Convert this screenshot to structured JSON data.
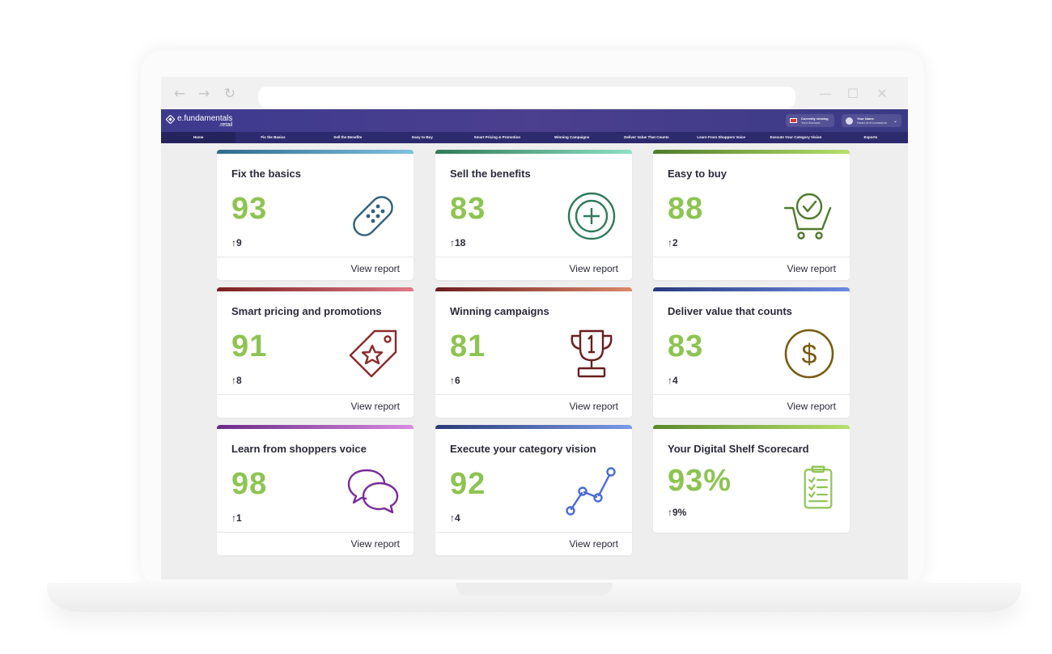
{
  "browser": {
    "icons": {
      "back": "←",
      "forward": "→",
      "reload": "↻",
      "minimize": "—",
      "maximize": "☐",
      "close": "✕"
    }
  },
  "header": {
    "logo_main": "e.fundamentals",
    "logo_sub": ".retail",
    "viewing_title": "Currently viewing",
    "viewing_sub": "Your Account",
    "user_name": "Your Name",
    "user_role": "Head of eCommerce"
  },
  "nav": {
    "items": [
      {
        "label": "Home"
      },
      {
        "label": "Fix the Basics"
      },
      {
        "label": "Sell the Benefits"
      },
      {
        "label": "Easy to Buy"
      },
      {
        "label": "Smart Pricing & Promotion"
      },
      {
        "label": "Winning Campaigns"
      },
      {
        "label": "Deliver Value That Counts"
      },
      {
        "label": "Learn From Shoppers Voice"
      },
      {
        "label": "Execute Your Category Vision"
      },
      {
        "label": "Exports"
      }
    ]
  },
  "cards": [
    {
      "title": "Fix the basics",
      "score": "93",
      "delta": "9",
      "link": "View report",
      "icon": "bandage-icon",
      "color": "#2e5f78",
      "bar": [
        "#2f6b8c",
        "#7fc1e0"
      ]
    },
    {
      "title": "Sell the benefits",
      "score": "83",
      "delta": "18",
      "link": "View report",
      "icon": "plus-circle-icon",
      "color": "#2f7a5a",
      "bar": [
        "#2f7a5a",
        "#8ee0c4"
      ]
    },
    {
      "title": "Easy to buy",
      "score": "88",
      "delta": "2",
      "link": "View report",
      "icon": "cart-check-icon",
      "color": "#4f7a2a",
      "bar": [
        "#4f7a2a",
        "#b6e06a"
      ]
    },
    {
      "title": "Smart pricing and promotions",
      "score": "91",
      "delta": "8",
      "link": "View report",
      "icon": "price-tag-icon",
      "color": "#8a2a2a",
      "bar": [
        "#7a2020",
        "#e07a88"
      ]
    },
    {
      "title": "Winning campaigns",
      "score": "81",
      "delta": "6",
      "link": "View report",
      "icon": "trophy-icon",
      "color": "#6a1e1e",
      "bar": [
        "#6a1e1e",
        "#d98a6a"
      ]
    },
    {
      "title": "Deliver value that counts",
      "score": "83",
      "delta": "4",
      "link": "View report",
      "icon": "dollar-circle-icon",
      "color": "#7a5a10",
      "bar": [
        "#2a3a7a",
        "#6a8ae0"
      ]
    },
    {
      "title": "Learn from shoppers voice",
      "score": "98",
      "delta": "1",
      "link": "View report",
      "icon": "chat-bubbles-icon",
      "color": "#7a2a9a",
      "bar": [
        "#6a2a8a",
        "#d88ae0"
      ]
    },
    {
      "title": "Execute your category vision",
      "score": "92",
      "delta": "4",
      "link": "View report",
      "icon": "trend-line-icon",
      "color": "#4a6ad8",
      "bar": [
        "#2a3a7a",
        "#7a9ae8"
      ]
    },
    {
      "title": "Your Digital Shelf Scorecard",
      "score": "93%",
      "delta": "9%",
      "link": "",
      "icon": "clipboard-checklist-icon",
      "color": "#8dc451",
      "bar": [
        "#5a8a2a",
        "#b6e06a"
      ]
    }
  ]
}
